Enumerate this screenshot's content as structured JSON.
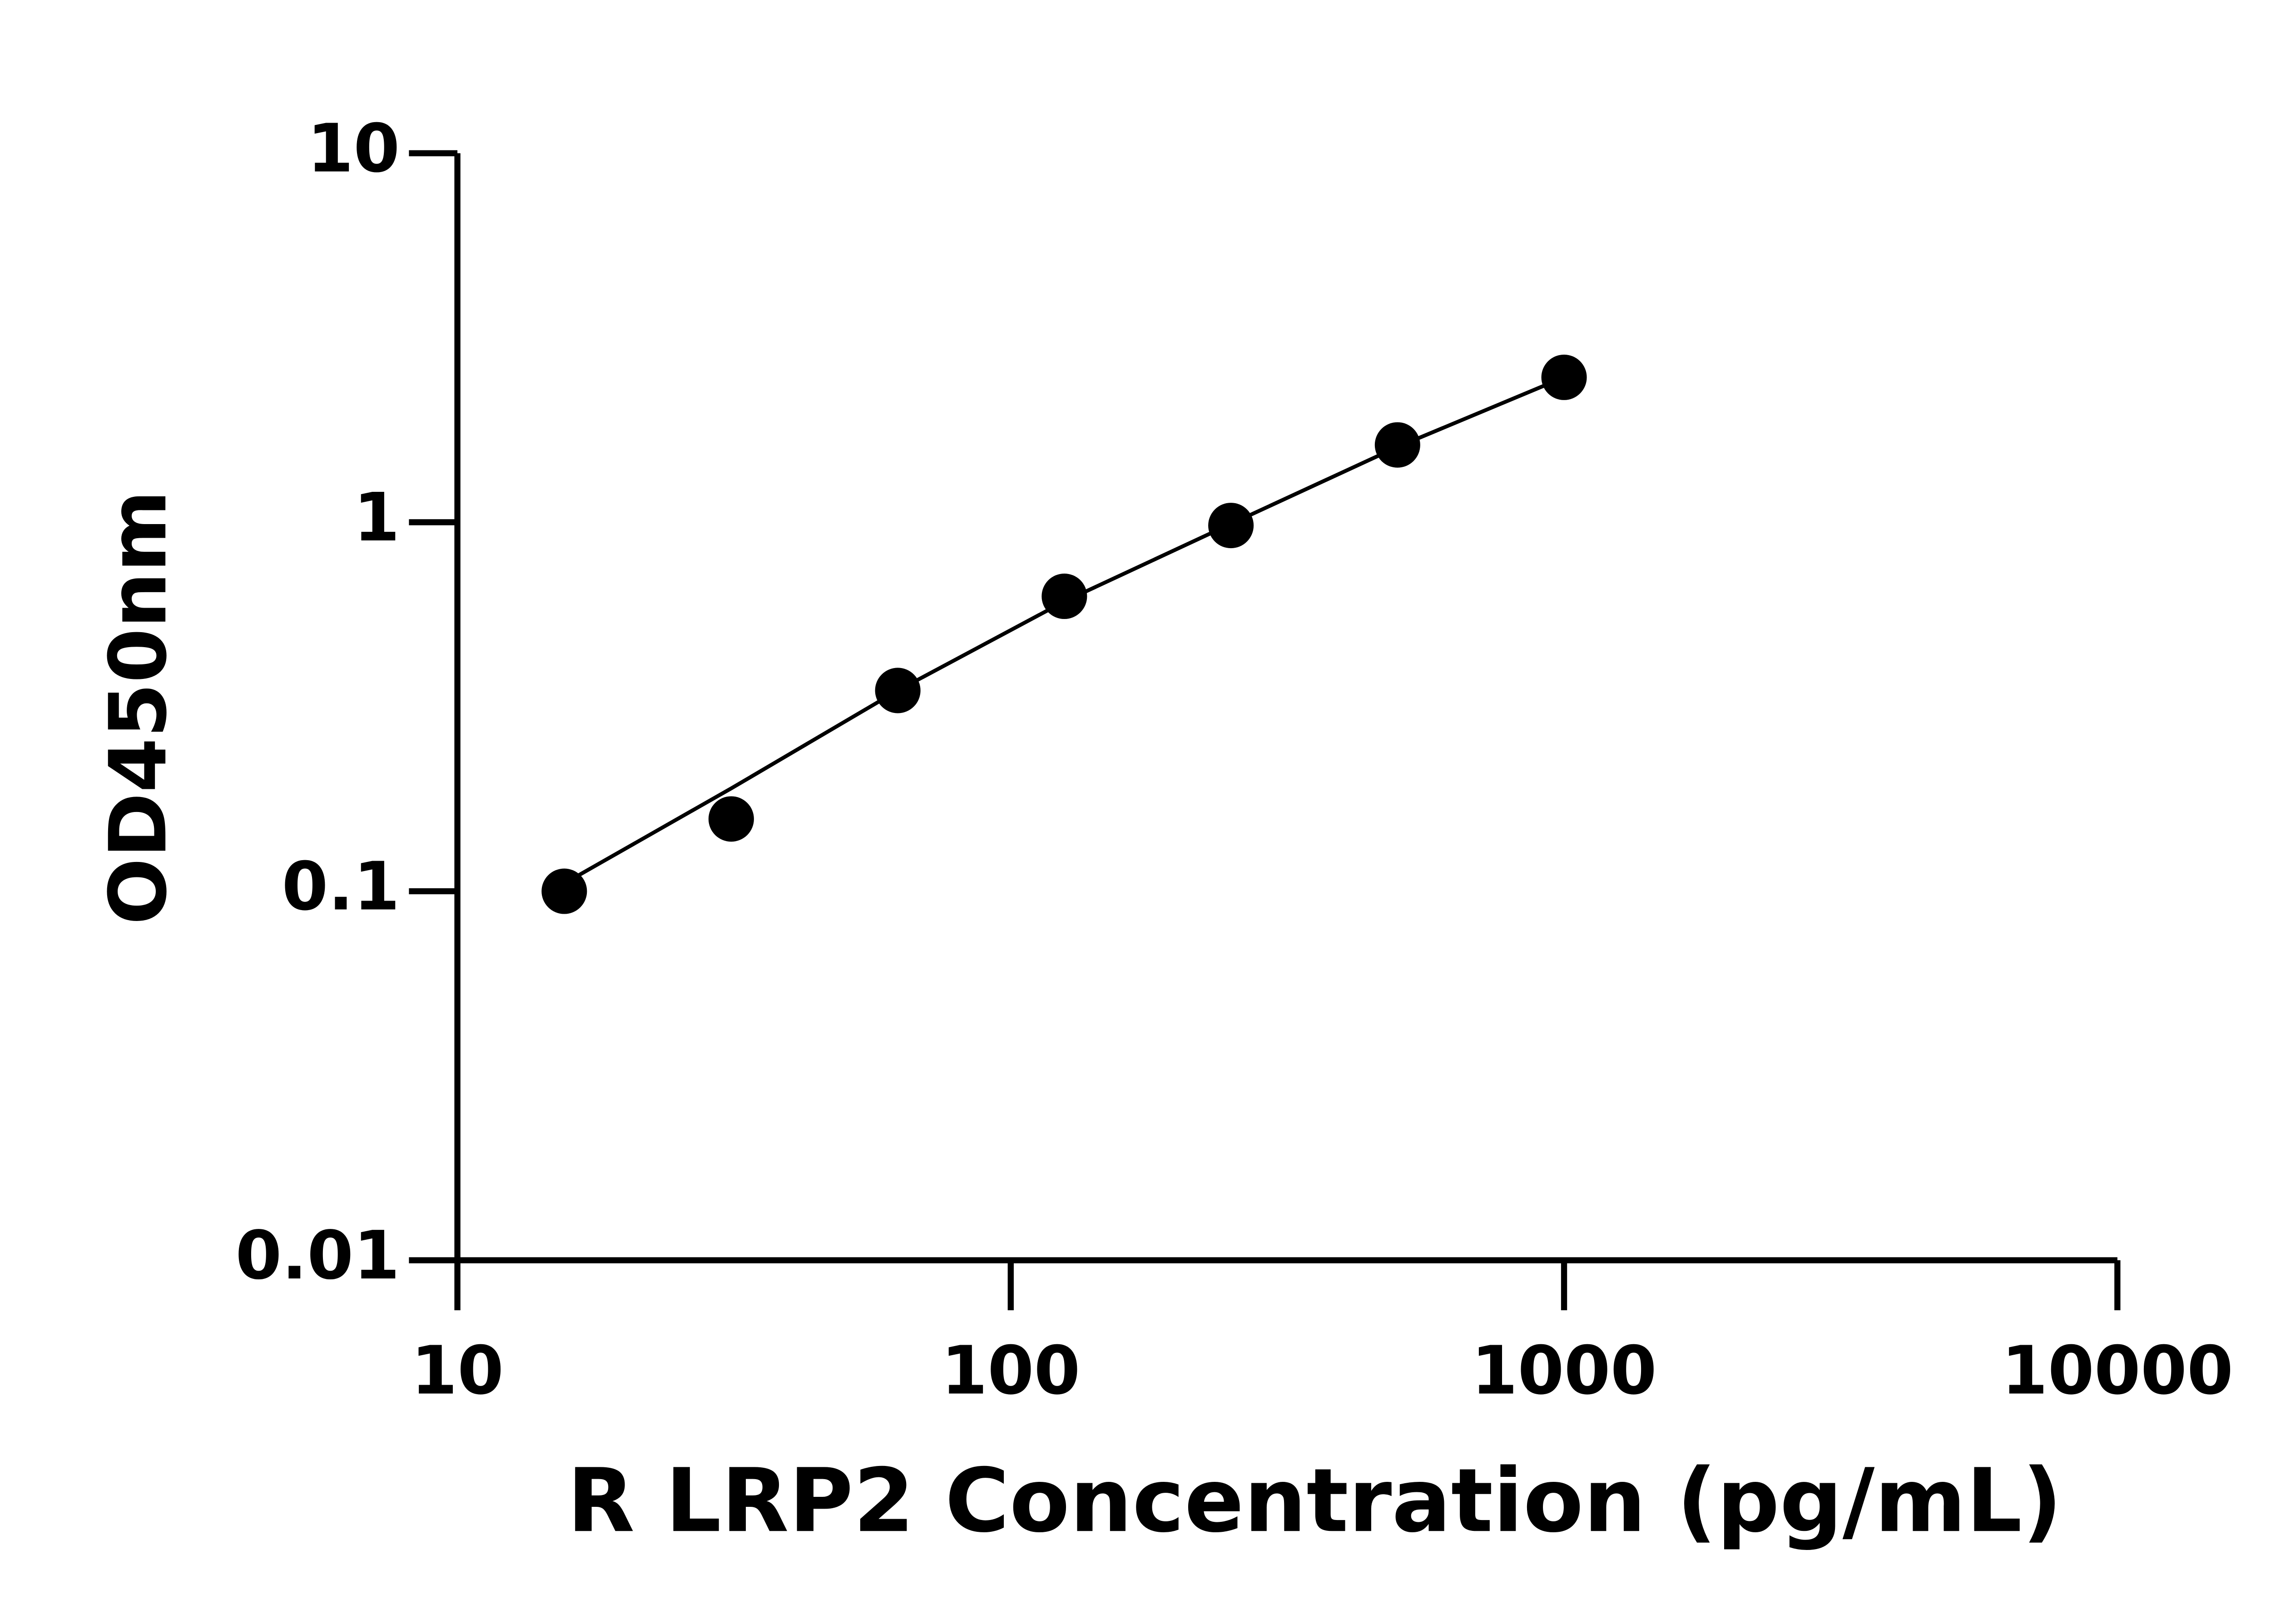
{
  "chart_data": {
    "type": "scatter",
    "x_label": "R LRP2 Concentration (pg/mL)",
    "y_label": "OD450nm",
    "x": [
      15.6,
      31.25,
      62.5,
      125,
      250,
      500,
      1000
    ],
    "values": [
      0.1,
      0.157,
      0.35,
      0.63,
      0.98,
      1.62,
      2.47
    ],
    "color": "#000000",
    "fit_curve": {
      "x": [
        15.6,
        31.25,
        62.5,
        125,
        250,
        500,
        1000
      ],
      "values": [
        0.105,
        0.19,
        0.35,
        0.61,
        0.99,
        1.6,
        2.47
      ]
    },
    "x_log": true,
    "y_log": true,
    "xlim": [
      10,
      10000
    ],
    "ylim": [
      0.01,
      10
    ],
    "xticks": [
      10,
      100,
      1000,
      10000
    ],
    "yticks": [
      0.01,
      0.1,
      1,
      10
    ],
    "grid": false
  }
}
